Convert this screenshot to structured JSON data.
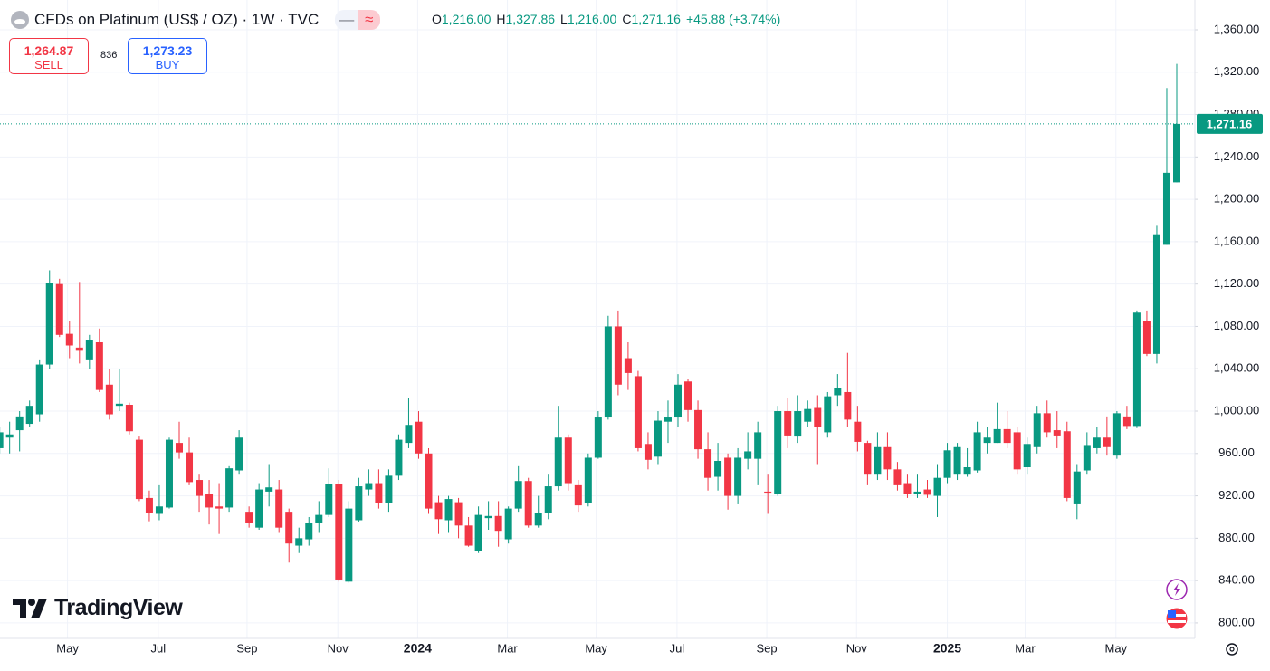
{
  "chart_data": {
    "type": "candlestick",
    "title": "CFDs on Platinum (US$ / OZ) · 1W · TVC",
    "ohlc_legend": [
      {
        "key": "O",
        "value": "1,216.00"
      },
      {
        "key": "H",
        "value": "1,327.86"
      },
      {
        "key": "L",
        "value": "1,216.00"
      },
      {
        "key": "C",
        "value": "1,271.16"
      }
    ],
    "change": "+45.88 (+3.74%)",
    "sell": {
      "price": "1,264.87",
      "label": "SELL"
    },
    "spread": "836",
    "buy": {
      "price": "1,273.23",
      "label": "BUY"
    },
    "brand": "TradingView",
    "up_color": "#089981",
    "down_color": "#f23645",
    "grid": true,
    "open": [
      965,
      975,
      982,
      988,
      997,
      1044,
      1120,
      1073,
      1060,
      1048,
      1065,
      1025,
      1005,
      1006,
      973,
      918,
      903,
      909,
      970,
      961,
      935,
      922,
      910,
      909,
      944,
      905,
      890,
      924,
      926,
      905,
      873,
      879,
      894,
      902,
      931,
      839,
      897,
      926,
      932,
      913,
      939,
      970,
      990,
      960,
      914,
      897,
      914,
      892,
      868,
      899,
      901,
      879,
      908,
      934,
      892,
      904,
      929,
      975,
      930,
      913,
      956,
      994,
      1080,
      1050,
      1033,
      969,
      957,
      990,
      994,
      1028,
      1001,
      964,
      938,
      956,
      920,
      955,
      955,
      924,
      922,
      1000,
      976,
      990,
      1003,
      980,
      1015,
      1018,
      990,
      970,
      940,
      966,
      945,
      932,
      922,
      926,
      920,
      937,
      940,
      940,
      944,
      970,
      970,
      983,
      980,
      947,
      966,
      998,
      982,
      981,
      912,
      944,
      965,
      975,
      958,
      995,
      986,
      1085,
      1054,
      1157,
      1216
    ],
    "high": [
      985,
      990,
      1000,
      1010,
      1048,
      1133,
      1125,
      1085,
      1122,
      1072,
      1078,
      1040,
      1040,
      1008,
      976,
      925,
      930,
      975,
      990,
      975,
      940,
      935,
      932,
      948,
      982,
      910,
      932,
      950,
      935,
      908,
      890,
      900,
      915,
      946,
      935,
      915,
      937,
      945,
      945,
      945,
      978,
      1012,
      1000,
      965,
      920,
      920,
      918,
      900,
      910,
      915,
      915,
      910,
      948,
      937,
      920,
      940,
      1005,
      978,
      935,
      960,
      1000,
      1090,
      1095,
      1065,
      1038,
      980,
      1000,
      1010,
      1035,
      1030,
      1010,
      980,
      970,
      960,
      965,
      980,
      990,
      940,
      1005,
      1012,
      1015,
      1010,
      1015,
      1018,
      1035,
      1055,
      1005,
      972,
      980,
      980,
      952,
      940,
      940,
      935,
      950,
      970,
      970,
      965,
      990,
      985,
      1008,
      1000,
      985,
      975,
      1005,
      1010,
      1000,
      990,
      950,
      980,
      985,
      995,
      1000,
      1005,
      1095,
      1095,
      1175,
      1305,
      1327.86
    ],
    "low": [
      960,
      960,
      962,
      985,
      990,
      1040,
      1070,
      1050,
      1045,
      1040,
      1018,
      992,
      1000,
      978,
      915,
      896,
      897,
      908,
      955,
      930,
      905,
      893,
      884,
      905,
      940,
      890,
      888,
      910,
      885,
      857,
      866,
      873,
      885,
      900,
      839,
      838,
      895,
      920,
      908,
      905,
      935,
      965,
      955,
      903,
      884,
      885,
      880,
      872,
      866,
      888,
      872,
      875,
      905,
      890,
      890,
      898,
      925,
      925,
      905,
      910,
      955,
      992,
      1015,
      1020,
      962,
      945,
      950,
      970,
      985,
      990,
      955,
      925,
      925,
      907,
      912,
      945,
      930,
      903,
      920,
      965,
      970,
      985,
      950,
      975,
      1005,
      985,
      962,
      930,
      935,
      935,
      925,
      918,
      918,
      918,
      900,
      932,
      935,
      938,
      942,
      960,
      970,
      965,
      940,
      940,
      960,
      975,
      965,
      915,
      898,
      940,
      960,
      958,
      955,
      983,
      984,
      1052,
      1045,
      1157,
      1216
    ],
    "close": [
      980,
      978,
      995,
      1005,
      1044,
      1121,
      1072,
      1062,
      1057,
      1067,
      1020,
      997,
      1007,
      981,
      917,
      904,
      910,
      973,
      961,
      933,
      920,
      909,
      908,
      946,
      975,
      894,
      926,
      928,
      890,
      875,
      880,
      894,
      902,
      931,
      841,
      908,
      929,
      932,
      913,
      939,
      973,
      987,
      960,
      908,
      898,
      917,
      892,
      873,
      902,
      901,
      887,
      908,
      934,
      892,
      904,
      929,
      975,
      932,
      911,
      956,
      994,
      1080,
      1025,
      1036,
      965,
      954,
      991,
      994,
      1025,
      1001,
      964,
      937,
      953,
      920,
      956,
      962,
      980,
      923,
      1000,
      977,
      1000,
      1002,
      985,
      1014,
      1022,
      992,
      971,
      940,
      966,
      945,
      930,
      922,
      924,
      921,
      937,
      963,
      966,
      947,
      980,
      975,
      983,
      970,
      945,
      969,
      998,
      980,
      977,
      918,
      943,
      968,
      975,
      966,
      998,
      986,
      1093,
      1054,
      1167,
      1225,
      1271.16
    ],
    "last_price": {
      "value": 1271.16,
      "label": "1,271.16"
    },
    "ylim": [
      785.4,
      1388.2
    ],
    "yticks": [
      {
        "value": 800,
        "label": "800.00"
      },
      {
        "value": 840,
        "label": "840.00"
      },
      {
        "value": 880,
        "label": "880.00"
      },
      {
        "value": 920,
        "label": "920.00"
      },
      {
        "value": 960,
        "label": "960.00"
      },
      {
        "value": 1000,
        "label": "1,000.00"
      },
      {
        "value": 1040,
        "label": "1,040.00"
      },
      {
        "value": 1080,
        "label": "1,080.00"
      },
      {
        "value": 1120,
        "label": "1,120.00"
      },
      {
        "value": 1160,
        "label": "1,160.00"
      },
      {
        "value": 1200,
        "label": "1,200.00"
      },
      {
        "value": 1240,
        "label": "1,240.00"
      },
      {
        "value": 1280,
        "label": "1,280.00"
      },
      {
        "value": 1320,
        "label": "1,320.00"
      },
      {
        "value": 1360,
        "label": "1,360.00"
      }
    ],
    "xticks": [
      {
        "value": 6.8,
        "label": "May"
      },
      {
        "value": 15.9,
        "label": "Jul"
      },
      {
        "value": 24.8,
        "label": "Sep"
      },
      {
        "value": 33.9,
        "label": "Nov"
      },
      {
        "value": 41.9,
        "label": "2024"
      },
      {
        "value": 50.9,
        "label": "Mar"
      },
      {
        "value": 59.8,
        "label": "May"
      },
      {
        "value": 67.9,
        "label": "Jul"
      },
      {
        "value": 76.9,
        "label": "Sep"
      },
      {
        "value": 85.9,
        "label": "Nov"
      },
      {
        "value": 95.0,
        "label": "2025"
      },
      {
        "value": 102.8,
        "label": "Mar"
      },
      {
        "value": 111.9,
        "label": "May"
      }
    ]
  }
}
